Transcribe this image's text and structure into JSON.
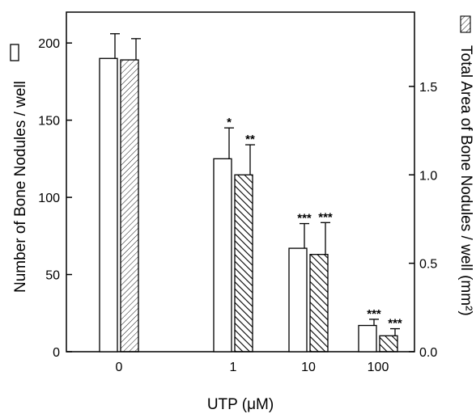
{
  "chart_data": {
    "type": "bar",
    "xlabel": "UTP (μM)",
    "ylabel": "Number of Bone Nodules / well",
    "y2label": "Total Area of Bone Nodules / well (mm²)",
    "categories": [
      "0",
      "1",
      "10",
      "100"
    ],
    "ylim": [
      0,
      220
    ],
    "y2lim": [
      0,
      1.92
    ],
    "yticks": [
      {
        "v": 0,
        "label": "0"
      },
      {
        "v": 50,
        "label": "50"
      },
      {
        "v": 100,
        "label": "100"
      },
      {
        "v": 150,
        "label": "150"
      },
      {
        "v": 200,
        "label": "200"
      }
    ],
    "y2ticks": [
      {
        "v": 0,
        "label": "0.0"
      },
      {
        "v": 0.5,
        "label": "0.5"
      },
      {
        "v": 1.0,
        "label": "1.0"
      },
      {
        "v": 1.5,
        "label": "1.5"
      }
    ],
    "legend": "right axis label",
    "series": [
      {
        "axis": "left",
        "fill": "open",
        "values": [
          190,
          125,
          67,
          17
        ],
        "errors": [
          16,
          20,
          16,
          4
        ],
        "significance": [
          "",
          "*",
          "***",
          "***"
        ]
      },
      {
        "axis": "right",
        "fill": "hatched",
        "values": [
          1.65,
          1.0,
          0.55,
          0.09
        ],
        "errors": [
          0.12,
          0.17,
          0.18,
          0.04
        ],
        "significance": [
          "",
          "**",
          "***",
          "***"
        ]
      }
    ]
  }
}
